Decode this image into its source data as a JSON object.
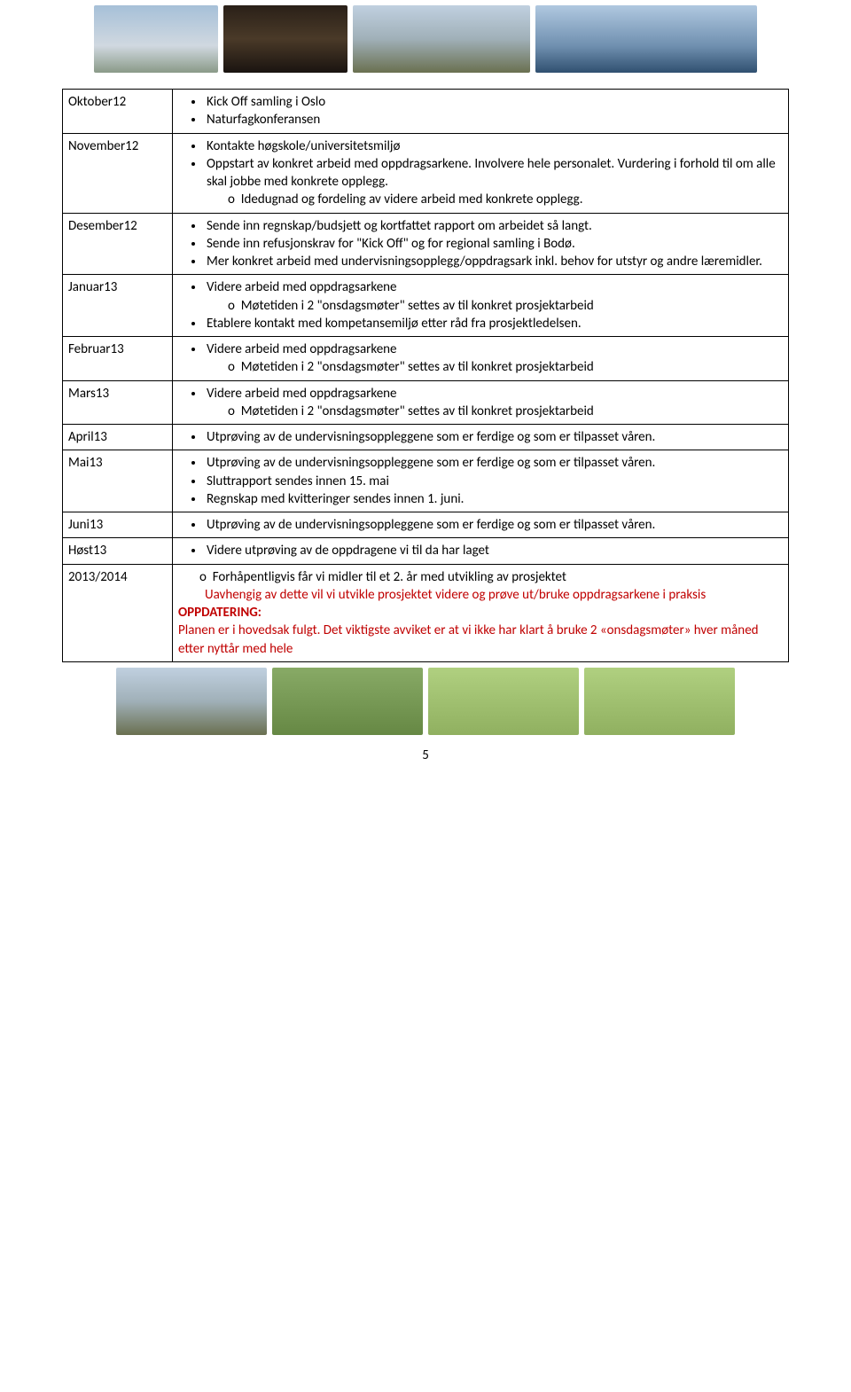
{
  "header_photos": [
    {
      "cls": "photo w140 sky-wash",
      "name": "header-photo-1"
    },
    {
      "cls": "photo w140 interior-wash",
      "name": "header-photo-2"
    },
    {
      "cls": "photo w200 outdoor-wash",
      "name": "header-photo-3"
    },
    {
      "cls": "photo w250 lake-wash",
      "name": "header-photo-4"
    }
  ],
  "footer_photos": [
    {
      "cls": "photo w170 outdoor-wash",
      "name": "footer-photo-1"
    },
    {
      "cls": "photo w170 green-wash",
      "name": "footer-photo-2"
    },
    {
      "cls": "photo w170 poster-wash",
      "name": "footer-photo-3"
    },
    {
      "cls": "photo w170 poster-wash",
      "name": "footer-photo-4"
    }
  ],
  "rows": {
    "oktober": {
      "label": "Oktober12",
      "b1": "Kick Off samling i Oslo",
      "b2": "Naturfagkonferansen"
    },
    "november": {
      "label": "November12",
      "b1": "Kontakte høgskole/universitetsmiljø",
      "b2": "Oppstart av konkret arbeid med oppdragsarkene. Involvere hele personalet. Vurdering i forhold til om alle skal jobbe med konkrete opplegg.",
      "s1": "Idedugnad og fordeling av videre arbeid med konkrete opplegg."
    },
    "desember": {
      "label": "Desember12",
      "b1": "Sende inn regnskap/budsjett og kortfattet rapport om arbeidet så langt.",
      "b2": "Sende inn refusjonskrav for \"Kick Off\" og for regional samling i Bodø.",
      "b3": "Mer konkret arbeid med undervisningsopplegg/oppdragsark inkl. behov for utstyr og andre læremidler."
    },
    "januar": {
      "label": "Januar13",
      "b1": "Videre arbeid med oppdragsarkene",
      "s1": "Møtetiden i 2 \"onsdagsmøter\" settes av til konkret prosjektarbeid",
      "b2": "Etablere kontakt med kompetansemiljø etter råd fra prosjektledelsen."
    },
    "februar": {
      "label": "Februar13",
      "b1": "Videre arbeid med oppdragsarkene",
      "s1": "Møtetiden i 2 \"onsdagsmøter\" settes av til konkret prosjektarbeid"
    },
    "mars": {
      "label": "Mars13",
      "b1": "Videre arbeid med oppdragsarkene",
      "s1": "Møtetiden i 2 \"onsdagsmøter\" settes av til konkret prosjektarbeid"
    },
    "april": {
      "label": "April13",
      "b1": "Utprøving av de undervisningsoppleggene som er ferdige og som er tilpasset våren."
    },
    "mai": {
      "label": "Mai13",
      "b1": "Utprøving av de undervisningsoppleggene som er ferdige og som er tilpasset våren.",
      "b2": "Sluttrapport sendes innen 15. mai",
      "b3": "Regnskap med kvitteringer sendes innen 1. juni."
    },
    "juni": {
      "label": "Juni13",
      "b1": "Utprøving av de undervisningsoppleggene som er ferdige og som er tilpasset våren."
    },
    "host": {
      "label": "Høst13",
      "b1": "Videre utprøving av de oppdragene vi til da har laget"
    },
    "y1314": {
      "label": "2013/2014",
      "o1": "Forhåpentligvis får vi midler til et 2. år med utvikling av prosjektet",
      "red1": "Uavhengig av dette vil vi utvikle prosjektet videre og prøve ut/bruke oppdragsarkene i praksis",
      "oppd": "OPPDATERING:",
      "red2": "Planen er i hovedsak fulgt. Det viktigste avviket er at vi ikke har klart å bruke 2 «onsdagsmøter» hver måned etter nyttår med hele"
    }
  },
  "page_number": "5",
  "colors": {
    "text_red": "#c00000",
    "border": "#000000"
  }
}
